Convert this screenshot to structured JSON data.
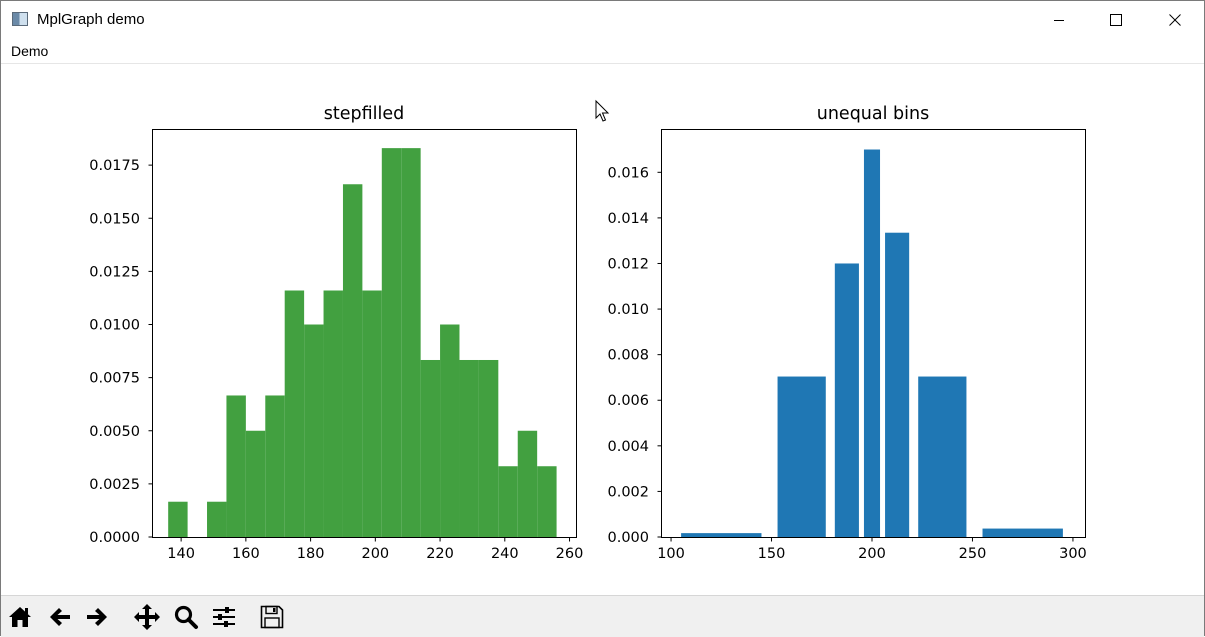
{
  "window": {
    "title": "MplGraph demo",
    "controls": [
      "minimize",
      "maximize",
      "close"
    ]
  },
  "menubar": {
    "items": [
      "Demo"
    ]
  },
  "toolbar": {
    "tools": [
      "home-icon",
      "back-arrow-icon",
      "forward-arrow-icon",
      "pan-move-icon",
      "zoom-magnifier-icon",
      "configure-subplots-icon",
      "save-floppy-icon"
    ]
  },
  "chart_data": [
    {
      "type": "bar",
      "histtype": "stepfilled",
      "title": "stepfilled",
      "color": "#42a040",
      "xlim": [
        131,
        262
      ],
      "ylim": [
        0,
        0.0192
      ],
      "xticks": [
        140,
        160,
        180,
        200,
        220,
        240,
        260
      ],
      "yticks": [
        0.0,
        0.0025,
        0.005,
        0.0075,
        0.01,
        0.0125,
        0.015,
        0.0175
      ],
      "ytick_labels": [
        "0.0000",
        "0.0025",
        "0.0050",
        "0.0075",
        "0.0100",
        "0.0125",
        "0.0150",
        "0.0175"
      ],
      "bin_edges": [
        136,
        142,
        148,
        154,
        160,
        166,
        172,
        178,
        184,
        190,
        196,
        202,
        208,
        214,
        220,
        226,
        232,
        238,
        244,
        250,
        256
      ],
      "values": [
        0.00166,
        0.0,
        0.00166,
        0.00666,
        0.005,
        0.00666,
        0.0116,
        0.01,
        0.0116,
        0.0166,
        0.0116,
        0.0183,
        0.0183,
        0.00833,
        0.01,
        0.00833,
        0.00833,
        0.00333,
        0.005,
        0.00333
      ],
      "grid": false
    },
    {
      "type": "bar",
      "title": "unequal bins",
      "color": "#1f77b4",
      "xlim": [
        95,
        306
      ],
      "ylim": [
        0,
        0.0179
      ],
      "xticks": [
        100,
        150,
        200,
        250,
        300
      ],
      "yticks": [
        0.0,
        0.002,
        0.004,
        0.006,
        0.008,
        0.01,
        0.012,
        0.014,
        0.016
      ],
      "ytick_labels": [
        "0.000",
        "0.002",
        "0.004",
        "0.006",
        "0.008",
        "0.010",
        "0.012",
        "0.014",
        "0.016"
      ],
      "bin_edges": [
        100,
        150,
        180,
        195,
        205,
        220,
        250,
        300
      ],
      "values": [
        0.00017,
        0.00704,
        0.012,
        0.017,
        0.01335,
        0.00704,
        0.00037
      ],
      "rwidth": 0.8,
      "grid": false
    }
  ]
}
